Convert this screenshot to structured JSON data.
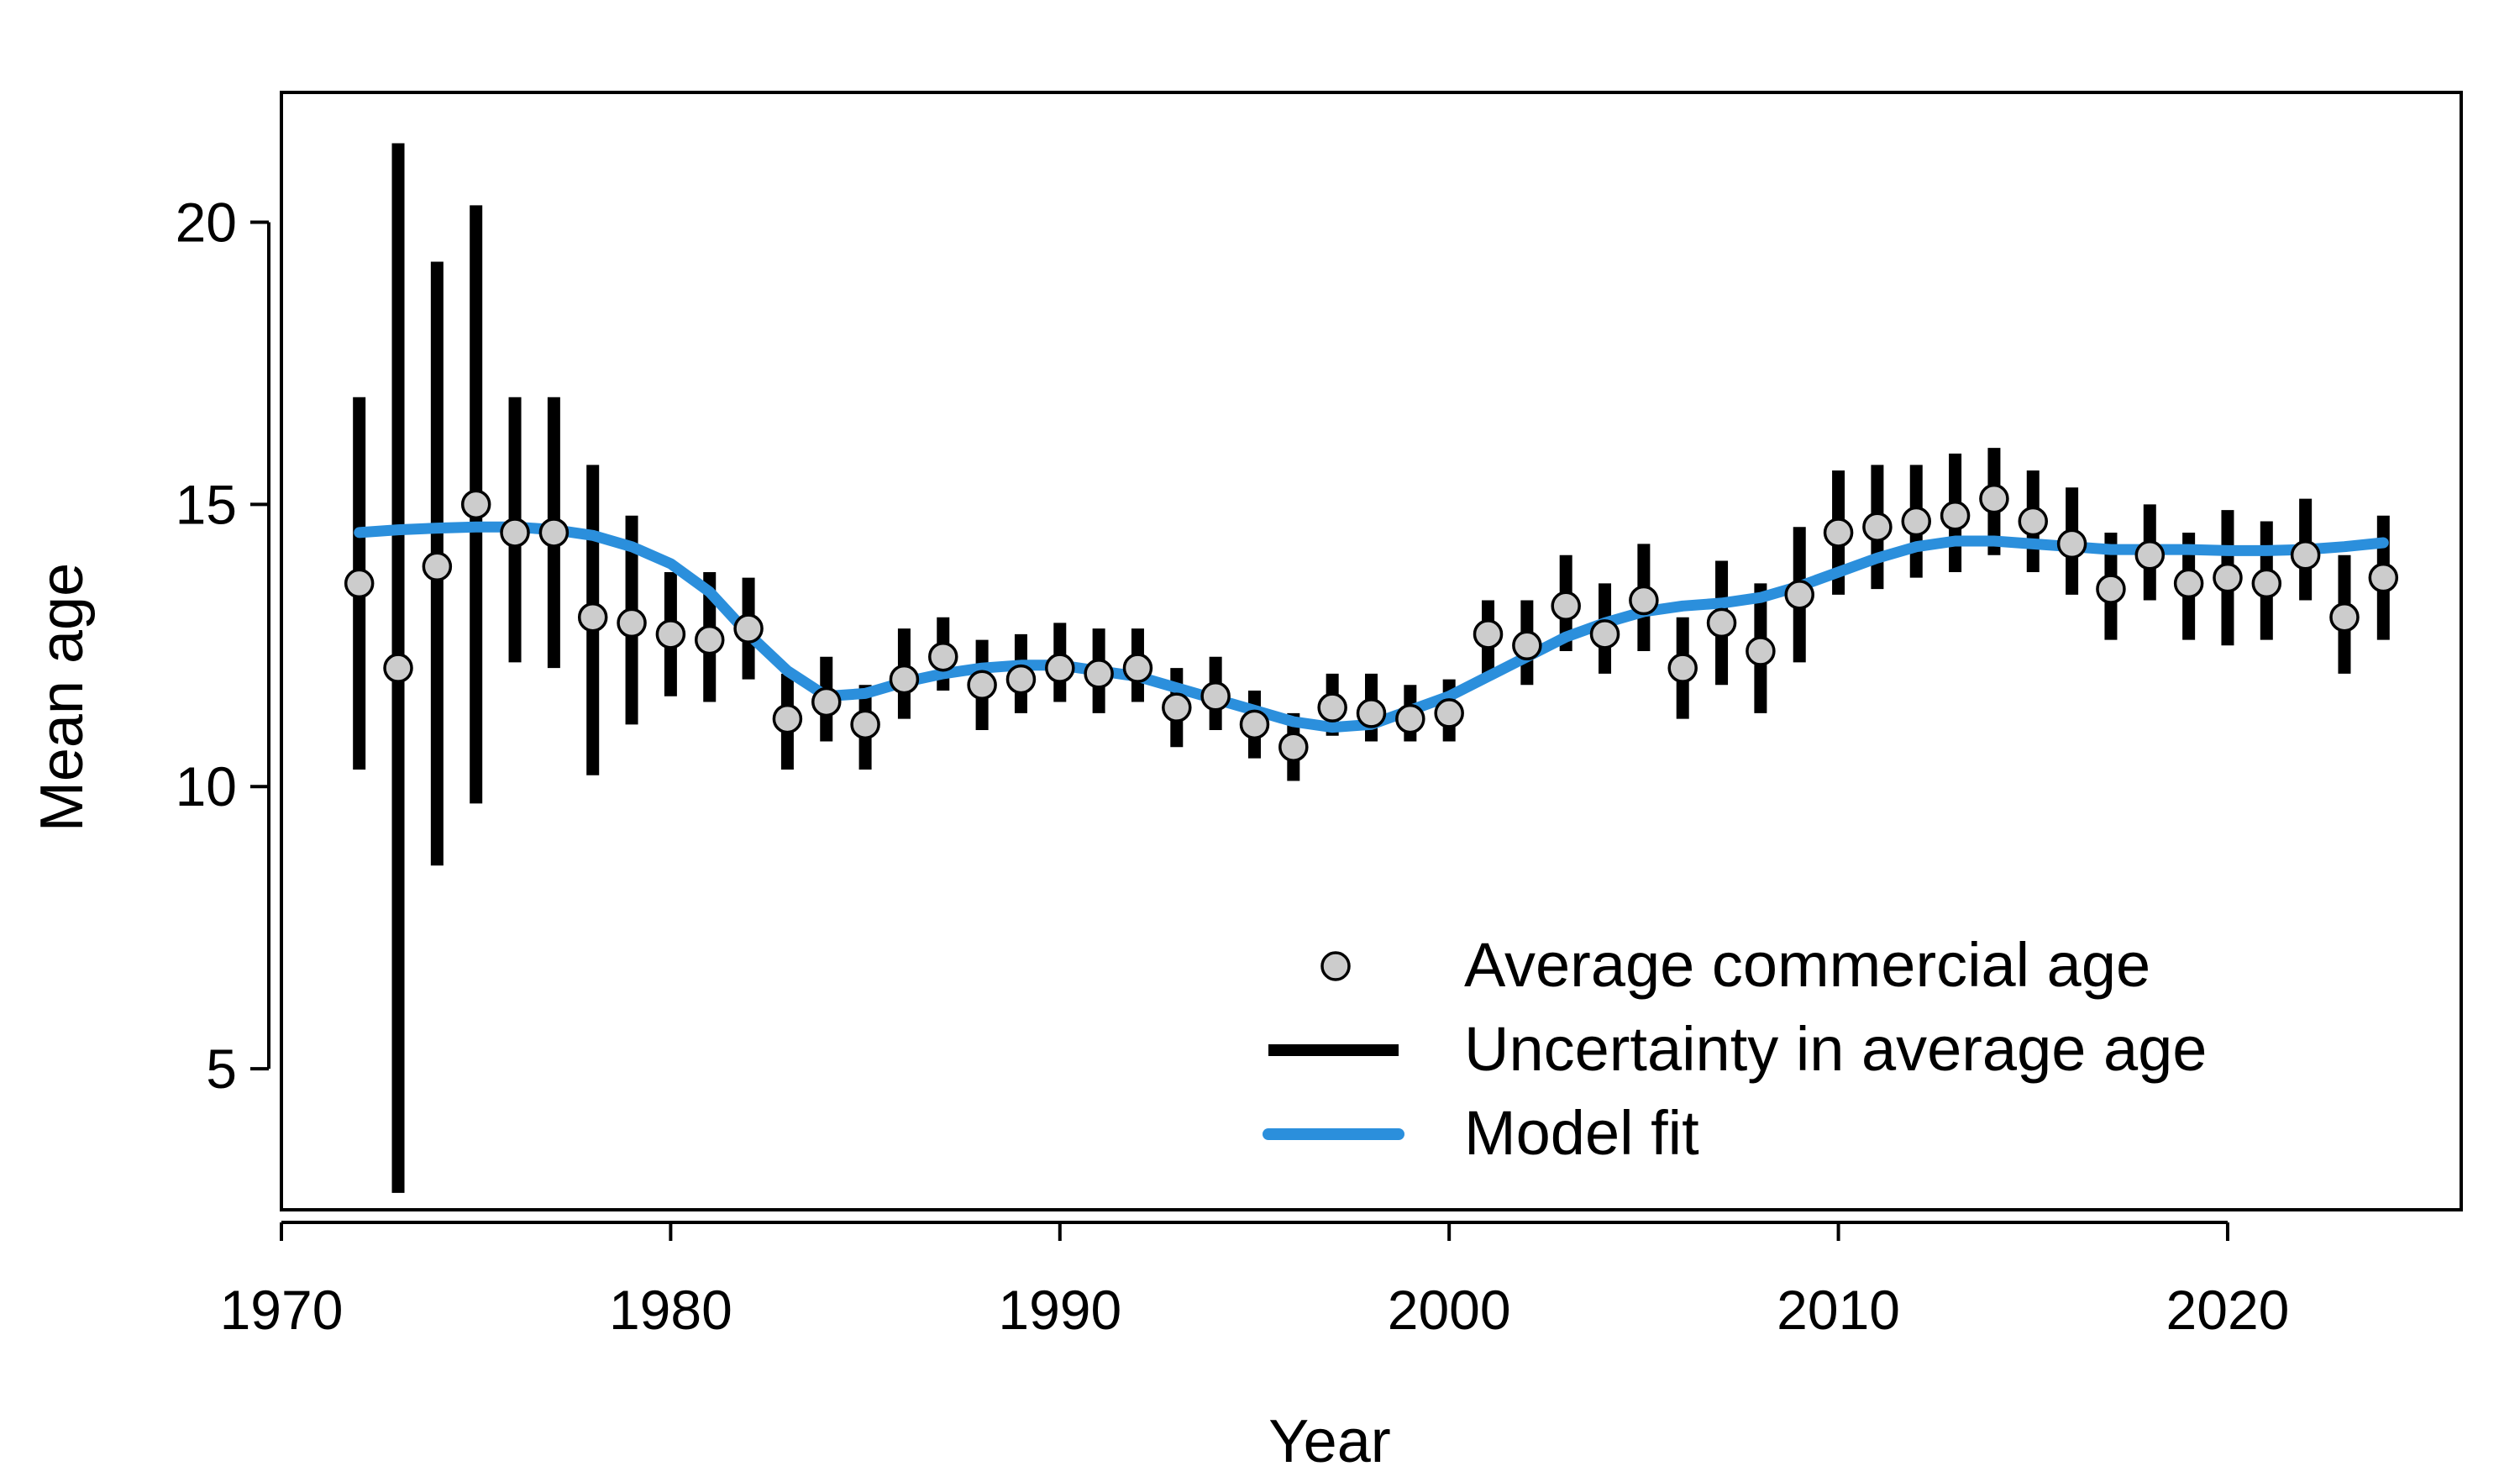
{
  "chart_data": {
    "type": "scatter",
    "title": "",
    "xlabel": "Year",
    "ylabel": "Mean age",
    "xlim": [
      1970,
      2026
    ],
    "ylim": [
      2.5,
      22.3
    ],
    "xticks": [
      1970,
      1980,
      1990,
      2000,
      2010,
      2020
    ],
    "yticks": [
      5,
      10,
      15,
      20
    ],
    "grid": false,
    "legend_position": "bottom-right",
    "legend": [
      {
        "key": "points",
        "label": "Average commercial age"
      },
      {
        "key": "errorbars",
        "label": "Uncertainty in average age"
      },
      {
        "key": "fit",
        "label": "Model fit"
      }
    ],
    "colors": {
      "points_fill": "#cccccc",
      "points_stroke": "#000000",
      "errorbars": "#000000",
      "fit": "#2b8fdc"
    },
    "series": [
      {
        "key": "points",
        "x": [
          1972,
          1973,
          1974,
          1975,
          1976,
          1977,
          1978,
          1979,
          1980,
          1981,
          1982,
          1983,
          1984,
          1985,
          1986,
          1987,
          1988,
          1989,
          1990,
          1991,
          1992,
          1993,
          1994,
          1995,
          1996,
          1997,
          1998,
          1999,
          2000,
          2001,
          2002,
          2003,
          2004,
          2005,
          2006,
          2007,
          2008,
          2009,
          2010,
          2011,
          2012,
          2013,
          2014,
          2015,
          2016,
          2017,
          2018,
          2019,
          2020,
          2021,
          2022,
          2023,
          2024
        ],
        "y": [
          13.6,
          12.1,
          13.9,
          15.0,
          14.5,
          14.5,
          13.0,
          12.9,
          12.7,
          12.6,
          12.8,
          11.2,
          11.5,
          11.1,
          11.9,
          12.3,
          11.8,
          11.9,
          12.1,
          12.0,
          12.1,
          11.4,
          11.6,
          11.1,
          10.7,
          11.4,
          11.3,
          11.2,
          11.3,
          12.7,
          12.5,
          13.2,
          12.7,
          13.3,
          12.1,
          12.9,
          12.4,
          13.4,
          14.5,
          14.6,
          14.7,
          14.8,
          15.1,
          14.7,
          14.3,
          13.5,
          14.1,
          13.6,
          13.7,
          13.6,
          14.1,
          13.0,
          13.7
        ]
      },
      {
        "key": "errorbars",
        "x": [
          1972,
          1973,
          1974,
          1975,
          1976,
          1977,
          1978,
          1979,
          1980,
          1981,
          1982,
          1983,
          1984,
          1985,
          1986,
          1987,
          1988,
          1989,
          1990,
          1991,
          1992,
          1993,
          1994,
          1995,
          1996,
          1997,
          1998,
          1999,
          2000,
          2001,
          2002,
          2003,
          2004,
          2005,
          2006,
          2007,
          2008,
          2009,
          2010,
          2011,
          2012,
          2013,
          2014,
          2015,
          2016,
          2017,
          2018,
          2019,
          2020,
          2021,
          2022,
          2023,
          2024
        ],
        "low": [
          10.3,
          2.8,
          8.6,
          9.7,
          12.2,
          12.1,
          10.2,
          11.1,
          11.6,
          11.5,
          11.9,
          10.3,
          10.8,
          10.3,
          11.2,
          11.7,
          11.0,
          11.3,
          11.5,
          11.3,
          11.5,
          10.7,
          11.0,
          10.5,
          10.1,
          10.9,
          10.8,
          10.8,
          10.8,
          12.0,
          11.8,
          12.4,
          12.0,
          12.4,
          11.2,
          11.8,
          11.3,
          12.2,
          13.4,
          13.5,
          13.7,
          13.8,
          14.1,
          13.8,
          13.4,
          12.6,
          13.3,
          12.6,
          12.5,
          12.6,
          13.3,
          12.0,
          12.6
        ],
        "high": [
          16.9,
          21.4,
          19.3,
          20.3,
          16.9,
          16.9,
          15.7,
          14.8,
          13.8,
          13.8,
          13.7,
          12.0,
          12.3,
          11.8,
          12.8,
          13.0,
          12.6,
          12.7,
          12.9,
          12.8,
          12.8,
          12.1,
          12.3,
          11.7,
          11.3,
          12.0,
          12.0,
          11.8,
          11.9,
          13.3,
          13.3,
          14.1,
          13.6,
          14.3,
          13.0,
          14.0,
          13.6,
          14.6,
          15.6,
          15.7,
          15.7,
          15.9,
          16.0,
          15.6,
          15.3,
          14.5,
          15.0,
          14.5,
          14.9,
          14.7,
          15.1,
          14.1,
          14.8
        ]
      },
      {
        "key": "fit",
        "x": [
          1972,
          1973,
          1974,
          1975,
          1976,
          1977,
          1978,
          1979,
          1980,
          1981,
          1982,
          1983,
          1984,
          1985,
          1986,
          1987,
          1988,
          1989,
          1990,
          1991,
          1992,
          1993,
          1994,
          1995,
          1996,
          1997,
          1998,
          1999,
          2000,
          2001,
          2002,
          2003,
          2004,
          2005,
          2006,
          2007,
          2008,
          2009,
          2010,
          2011,
          2012,
          2013,
          2014,
          2015,
          2016,
          2017,
          2018,
          2019,
          2020,
          2021,
          2022,
          2023,
          2024
        ],
        "y": [
          14.5,
          14.55,
          14.58,
          14.6,
          14.6,
          14.55,
          14.45,
          14.25,
          13.95,
          13.45,
          12.7,
          12.05,
          11.6,
          11.65,
          11.85,
          12.0,
          12.1,
          12.15,
          12.15,
          12.05,
          11.95,
          11.75,
          11.55,
          11.35,
          11.15,
          11.05,
          11.1,
          11.35,
          11.6,
          11.95,
          12.3,
          12.65,
          12.9,
          13.1,
          13.2,
          13.25,
          13.35,
          13.55,
          13.8,
          14.05,
          14.25,
          14.35,
          14.35,
          14.3,
          14.25,
          14.2,
          14.2,
          14.2,
          14.18,
          14.18,
          14.2,
          14.25,
          14.32
        ]
      }
    ]
  }
}
